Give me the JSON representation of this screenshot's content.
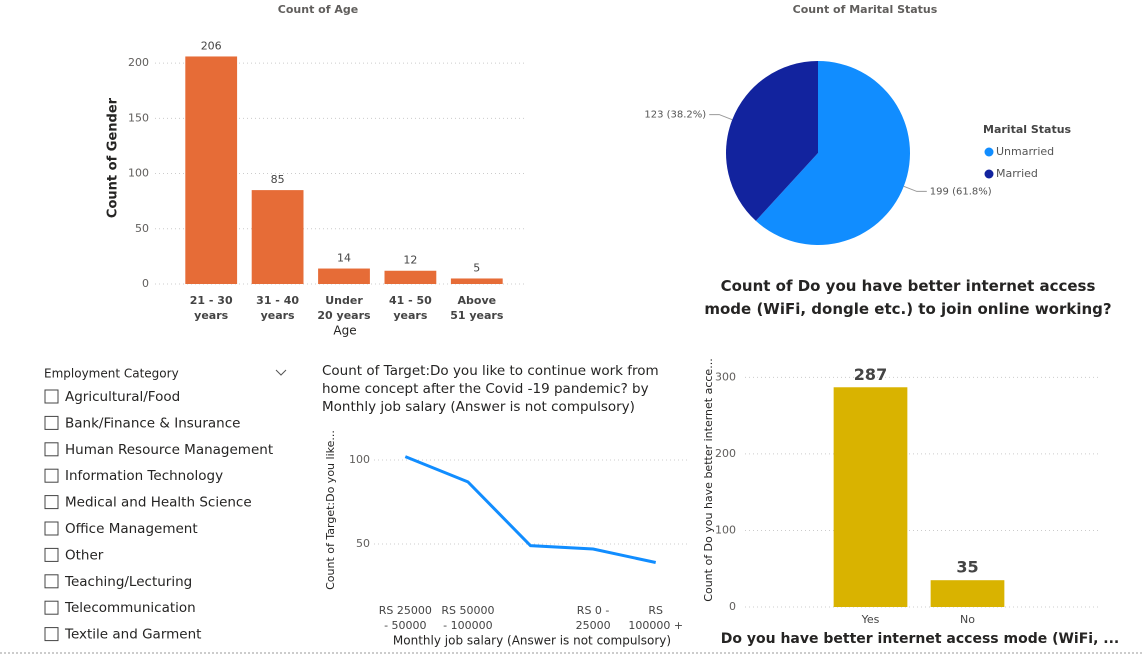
{
  "chart_data": [
    {
      "type": "bar",
      "title": "Count of Age",
      "x_label": "Age",
      "y_label": "Count of Gender",
      "categories": [
        "21 - 30 years",
        "31 - 40 years",
        "Under 20 years",
        "41 - 50 years",
        "Above 51 years"
      ],
      "values": [
        206,
        85,
        14,
        12,
        5
      ],
      "color": "#E66C37",
      "ylim": [
        0,
        220
      ],
      "yticks": [
        0,
        50,
        100,
        150,
        200
      ],
      "grid": true
    },
    {
      "type": "pie",
      "title": "Count of Marital Status",
      "legend_title": "Marital Status",
      "categories": [
        "Unmarried",
        "Married"
      ],
      "values": [
        199,
        123
      ],
      "value_labels": [
        "199 (61.8%)",
        "123 (38.2%)"
      ],
      "colors": [
        "#118DFF",
        "#12239E"
      ],
      "legend": "right"
    },
    {
      "type": "line",
      "title": "Count of Target:Do you like to continue work from home concept after the Covid -19 pandemic? by Monthly job salary (Answer is not compulsory)",
      "x_label": "Monthly job salary (Answer is not compulsory)",
      "y_label": "Count of Target:Do you like...",
      "categories": [
        "RS 25000 - 50000",
        "RS 50000 - 100000",
        null,
        "RS 0 - 25000",
        "RS 100000 +"
      ],
      "values": [
        102,
        87,
        49,
        47,
        39
      ],
      "color": "#118DFF",
      "ylim": [
        20,
        110
      ],
      "yticks": [
        50,
        100
      ],
      "grid": true
    },
    {
      "type": "bar",
      "title": "Count of Do you have better internet access mode (WiFi, dongle etc.) to join online working?",
      "x_label": "Do you have better internet access mode (WiFi, ...",
      "y_label": "Count of Do you have better internet acce...",
      "categories": [
        "Yes",
        "No"
      ],
      "values": [
        287,
        35
      ],
      "color": "#D9B300",
      "ylim": [
        0,
        320
      ],
      "yticks": [
        0,
        100,
        200,
        300
      ],
      "grid": true
    }
  ],
  "slicer": {
    "title": "Employment Category",
    "items": [
      "Agricultural/Food",
      "Bank/Finance & Insurance",
      "Human Resource Management",
      "Information Technology",
      "Medical and Health Science",
      "Office Management",
      "Other",
      "Teaching/Lecturing",
      "Telecommunication",
      "Textile and Garment"
    ]
  }
}
